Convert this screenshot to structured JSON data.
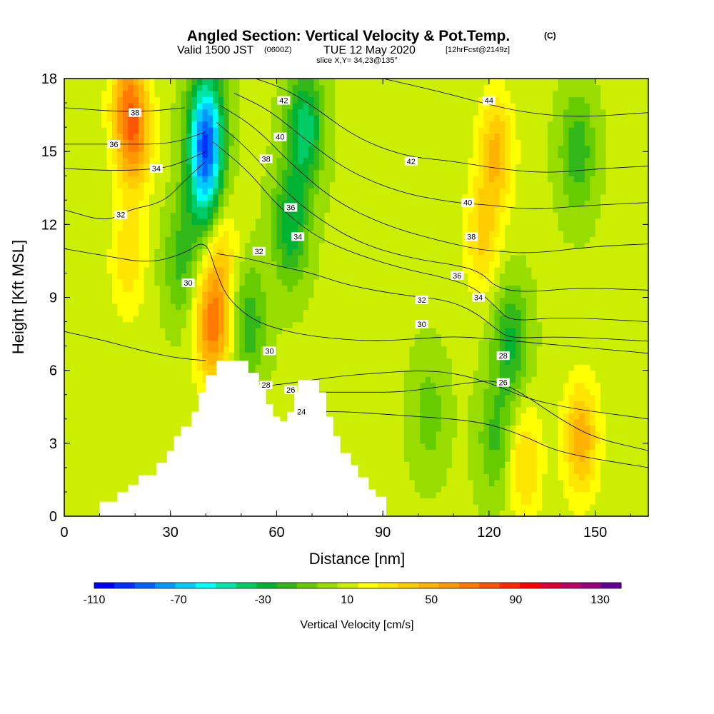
{
  "chart_data": {
    "type": "heatmap",
    "title": "Angled Section: Vertical Velocity & Pot.Temp.",
    "title_unit": "(C)",
    "subtitle_a": "Valid 1500 JST",
    "subtitle_b": "(0600Z)",
    "subtitle_c": "TUE 12 May 2020",
    "subtitle_d": "[12hrFcst@2149z]",
    "slice_label": "slice X,Y= 34,23@135°",
    "xlabel": "Distance [nm]",
    "ylabel": "Height [Kft MSL]",
    "xlim": [
      0,
      165
    ],
    "ylim": [
      0,
      18
    ],
    "x_ticks": [
      "0",
      "30",
      "60",
      "90",
      "120",
      "150"
    ],
    "y_ticks": [
      "0",
      "3",
      "6",
      "9",
      "12",
      "15",
      "18"
    ],
    "colorbar": {
      "label": "Vertical Velocity [cm/s]",
      "tick_labels": [
        "-110",
        "-70",
        "-30",
        "10",
        "50",
        "90",
        "130"
      ],
      "levels": [
        -110,
        -100,
        -90,
        -80,
        -70,
        -60,
        -50,
        -40,
        -30,
        -20,
        -10,
        0,
        10,
        20,
        30,
        40,
        50,
        60,
        70,
        80,
        90,
        100,
        110,
        120,
        130,
        140
      ],
      "colors": [
        "#0000ff",
        "#0033ff",
        "#0066ff",
        "#0099ff",
        "#00ccff",
        "#00ffff",
        "#00e6aa",
        "#00cc66",
        "#00b333",
        "#33b81a",
        "#66cc00",
        "#99dd00",
        "#ccee00",
        "#ffff00",
        "#ffe600",
        "#ffcc00",
        "#ffb300",
        "#ff9900",
        "#ff7a00",
        "#ff5500",
        "#ff2a00",
        "#ff0000",
        "#dd0033",
        "#bb0066",
        "#990080",
        "#660099"
      ]
    },
    "terrain_nm_kft": [
      [
        0,
        0
      ],
      [
        10,
        0
      ],
      [
        10,
        0.6
      ],
      [
        15,
        0.6
      ],
      [
        15,
        1
      ],
      [
        18,
        1
      ],
      [
        18,
        1.3
      ],
      [
        21,
        1.3
      ],
      [
        21,
        1.7
      ],
      [
        26,
        1.7
      ],
      [
        26,
        2.2
      ],
      [
        29,
        2.2
      ],
      [
        29,
        2.7
      ],
      [
        31,
        2.7
      ],
      [
        31,
        3.3
      ],
      [
        33,
        3.3
      ],
      [
        33,
        3.7
      ],
      [
        36,
        3.7
      ],
      [
        36,
        4.3
      ],
      [
        38,
        4.3
      ],
      [
        38,
        5.1
      ],
      [
        40,
        5.1
      ],
      [
        40,
        5.8
      ],
      [
        43,
        5.8
      ],
      [
        43,
        6.4
      ],
      [
        52,
        6.4
      ],
      [
        52,
        5.9
      ],
      [
        55,
        5.9
      ],
      [
        55,
        5.4
      ],
      [
        57,
        5.4
      ],
      [
        57,
        4.6
      ],
      [
        59,
        4.6
      ],
      [
        59,
        4.1
      ],
      [
        61,
        4.1
      ],
      [
        61,
        3.9
      ],
      [
        63,
        3.9
      ],
      [
        63,
        4.3
      ],
      [
        65,
        4.3
      ],
      [
        65,
        5.1
      ],
      [
        66,
        5.1
      ],
      [
        66,
        5.6
      ],
      [
        72,
        5.6
      ],
      [
        72,
        5.1
      ],
      [
        74,
        5.1
      ],
      [
        74,
        4.1
      ],
      [
        76,
        4.1
      ],
      [
        76,
        3.3
      ],
      [
        78,
        3.3
      ],
      [
        78,
        2.6
      ],
      [
        81,
        2.6
      ],
      [
        81,
        2.1
      ],
      [
        83,
        2.1
      ],
      [
        83,
        1.6
      ],
      [
        86,
        1.6
      ],
      [
        86,
        1.1
      ],
      [
        88,
        1.1
      ],
      [
        88,
        0.8
      ],
      [
        91,
        0.8
      ],
      [
        91,
        0
      ],
      [
        165,
        0
      ]
    ],
    "velocity_features": [
      {
        "x": 42,
        "y": 7.8,
        "w": 60
      },
      {
        "x": 44,
        "y": 11,
        "w": 30
      },
      {
        "x": 18,
        "y": 10.5,
        "w": 25
      },
      {
        "x": 20,
        "y": 15.5,
        "w": 40
      },
      {
        "x": 18,
        "y": 17,
        "w": 45
      },
      {
        "x": 122,
        "y": 15,
        "w": 40
      },
      {
        "x": 118,
        "y": 11.5,
        "w": 30
      },
      {
        "x": 146,
        "y": 3.2,
        "w": 45
      },
      {
        "x": 130,
        "y": 2.2,
        "w": 30
      },
      {
        "x": 40,
        "y": 16,
        "w": -80
      },
      {
        "x": 40,
        "y": 13.5,
        "w": -55
      },
      {
        "x": 68,
        "y": 16,
        "w": -50
      },
      {
        "x": 64,
        "y": 12,
        "w": -40
      },
      {
        "x": 52,
        "y": 8,
        "w": -30
      },
      {
        "x": 33,
        "y": 10.5,
        "w": -25
      },
      {
        "x": 145,
        "y": 15,
        "w": -30
      },
      {
        "x": 126,
        "y": 7.2,
        "w": -35
      },
      {
        "x": 122,
        "y": 3.2,
        "w": -25
      },
      {
        "x": 103,
        "y": 4.2,
        "w": -18
      }
    ],
    "theta_contours": [
      {
        "label": "38",
        "points": [
          [
            0,
            16.8
          ],
          [
            20,
            16.6
          ],
          [
            34,
            16.8
          ]
        ]
      },
      {
        "label": "36",
        "points": [
          [
            0,
            15.3
          ],
          [
            16,
            15.3
          ],
          [
            30,
            15.3
          ],
          [
            40,
            15.8
          ]
        ]
      },
      {
        "label": "34",
        "points": [
          [
            0,
            14.3
          ],
          [
            15,
            14.2
          ],
          [
            28,
            14.3
          ],
          [
            34,
            14.6
          ],
          [
            40,
            15
          ]
        ]
      },
      {
        "label": "32",
        "points": [
          [
            0,
            12.6
          ],
          [
            12,
            12.1
          ],
          [
            18,
            12.6
          ],
          [
            28,
            12.9
          ],
          [
            34,
            13.8
          ],
          [
            40,
            14.6
          ]
        ]
      },
      {
        "label": "30",
        "points": [
          [
            0,
            11.0
          ],
          [
            12,
            10.7
          ],
          [
            24,
            10.4
          ],
          [
            34,
            10.8
          ],
          [
            40,
            11.4
          ],
          [
            43,
            10
          ],
          [
            46,
            9
          ],
          [
            52,
            8.2
          ],
          [
            58,
            7.8
          ],
          [
            66,
            7.5
          ],
          [
            76,
            7.3
          ],
          [
            88,
            7.2
          ],
          [
            100,
            7.3
          ],
          [
            110,
            7.4
          ],
          [
            120,
            7.3
          ],
          [
            135,
            7.1
          ],
          [
            165,
            6.7
          ]
        ]
      },
      {
        "label": "28",
        "points": [
          [
            0,
            7.6
          ],
          [
            12,
            7.2
          ],
          [
            22,
            6.8
          ],
          [
            32,
            6.5
          ],
          [
            40,
            6.4
          ]
        ]
      },
      {
        "label": "28",
        "points": [
          [
            45,
            5.2
          ],
          [
            52,
            5.3
          ],
          [
            60,
            5.4
          ],
          [
            70,
            5.6
          ],
          [
            80,
            5.8
          ],
          [
            90,
            5.9
          ],
          [
            100,
            6.0
          ],
          [
            110,
            5.9
          ],
          [
            120,
            5.5
          ],
          [
            135,
            4.6
          ],
          [
            165,
            4.0
          ]
        ]
      },
      {
        "label": "26",
        "points": [
          [
            66,
            5.1
          ],
          [
            75,
            5.1
          ],
          [
            85,
            5.1
          ],
          [
            95,
            5.1
          ],
          [
            105,
            5.3
          ],
          [
            115,
            5.5
          ],
          [
            122,
            5.6
          ],
          [
            130,
            5.0
          ],
          [
            140,
            4.0
          ],
          [
            150,
            3.2
          ],
          [
            165,
            2.7
          ]
        ]
      },
      {
        "label": "24",
        "points": [
          [
            72,
            4.3
          ],
          [
            80,
            4.3
          ],
          [
            90,
            4.2
          ],
          [
            100,
            4.1
          ],
          [
            110,
            4.0
          ],
          [
            120,
            3.8
          ],
          [
            130,
            3.3
          ],
          [
            140,
            2.6
          ],
          [
            165,
            2.0
          ]
        ]
      },
      {
        "label": "32",
        "points": [
          [
            43,
            10.8
          ],
          [
            52,
            10.6
          ],
          [
            60,
            10.3
          ],
          [
            70,
            10.0
          ],
          [
            80,
            9.5
          ],
          [
            95,
            9.1
          ],
          [
            108,
            8.9
          ],
          [
            116,
            8.4
          ],
          [
            122,
            7.7
          ],
          [
            126,
            7.3
          ],
          [
            140,
            7.4
          ],
          [
            165,
            7.2
          ]
        ]
      },
      {
        "label": "34",
        "points": [
          [
            42,
            15.4
          ],
          [
            52,
            14.2
          ],
          [
            60,
            12.8
          ],
          [
            70,
            11.6
          ],
          [
            80,
            10.9
          ],
          [
            95,
            10.2
          ],
          [
            108,
            9.8
          ],
          [
            116,
            9.4
          ],
          [
            122,
            8.6
          ],
          [
            126,
            8.0
          ],
          [
            140,
            8.2
          ],
          [
            165,
            8.0
          ]
        ]
      },
      {
        "label": "36",
        "points": [
          [
            43,
            16.2
          ],
          [
            52,
            15.1
          ],
          [
            62,
            13.4
          ],
          [
            72,
            12.2
          ],
          [
            84,
            11.2
          ],
          [
            98,
            10.6
          ],
          [
            112,
            10.3
          ],
          [
            118,
            10.0
          ],
          [
            122,
            9.4
          ],
          [
            130,
            9.2
          ],
          [
            145,
            9.4
          ],
          [
            165,
            9.3
          ]
        ]
      },
      {
        "label": "38",
        "points": [
          [
            44,
            16.9
          ],
          [
            54,
            16.0
          ],
          [
            64,
            14.5
          ],
          [
            76,
            13.0
          ],
          [
            90,
            12.0
          ],
          [
            104,
            11.4
          ],
          [
            116,
            11.0
          ],
          [
            122,
            10.9
          ],
          [
            132,
            10.8
          ],
          [
            150,
            11.1
          ],
          [
            165,
            11.2
          ]
        ]
      },
      {
        "label": "40",
        "points": [
          [
            48,
            17.4
          ],
          [
            58,
            16.7
          ],
          [
            68,
            15.5
          ],
          [
            80,
            14.2
          ],
          [
            95,
            13.3
          ],
          [
            110,
            12.9
          ],
          [
            120,
            12.8
          ],
          [
            132,
            12.6
          ],
          [
            150,
            12.8
          ],
          [
            165,
            12.9
          ]
        ]
      },
      {
        "label": "42",
        "points": [
          [
            54,
            18
          ],
          [
            62,
            17.6
          ],
          [
            70,
            16.9
          ],
          [
            82,
            15.6
          ],
          [
            96,
            14.8
          ],
          [
            110,
            14.6
          ],
          [
            122,
            14.3
          ],
          [
            136,
            14.1
          ],
          [
            152,
            14.3
          ],
          [
            165,
            14.4
          ]
        ]
      },
      {
        "label": "44",
        "points": [
          [
            90,
            18
          ],
          [
            105,
            17.5
          ],
          [
            118,
            17.0
          ],
          [
            130,
            16.6
          ],
          [
            145,
            16.4
          ],
          [
            165,
            16.6
          ]
        ]
      }
    ],
    "contour_labels": [
      {
        "text": "38",
        "x": 20,
        "y": 16.6
      },
      {
        "text": "36",
        "x": 14,
        "y": 15.3
      },
      {
        "text": "34",
        "x": 26,
        "y": 14.3
      },
      {
        "text": "32",
        "x": 16,
        "y": 12.4
      },
      {
        "text": "30",
        "x": 35,
        "y": 9.6
      },
      {
        "text": "30",
        "x": 58,
        "y": 6.8
      },
      {
        "text": "28",
        "x": 57,
        "y": 5.4
      },
      {
        "text": "26",
        "x": 64,
        "y": 5.2
      },
      {
        "text": "24",
        "x": 67,
        "y": 4.3
      },
      {
        "text": "32",
        "x": 55,
        "y": 10.9
      },
      {
        "text": "34",
        "x": 66,
        "y": 11.5
      },
      {
        "text": "36",
        "x": 64,
        "y": 12.7
      },
      {
        "text": "38",
        "x": 57,
        "y": 14.7
      },
      {
        "text": "40",
        "x": 61,
        "y": 15.6
      },
      {
        "text": "42",
        "x": 62,
        "y": 17.1
      },
      {
        "text": "42",
        "x": 98,
        "y": 14.6
      },
      {
        "text": "44",
        "x": 120,
        "y": 17.1
      },
      {
        "text": "40",
        "x": 114,
        "y": 12.9
      },
      {
        "text": "38",
        "x": 115,
        "y": 11.5
      },
      {
        "text": "36",
        "x": 111,
        "y": 9.9
      },
      {
        "text": "34",
        "x": 117,
        "y": 9.0
      },
      {
        "text": "32",
        "x": 101,
        "y": 8.9
      },
      {
        "text": "30",
        "x": 101,
        "y": 7.9
      },
      {
        "text": "28",
        "x": 124,
        "y": 6.6
      },
      {
        "text": "26",
        "x": 124,
        "y": 5.5
      }
    ]
  }
}
